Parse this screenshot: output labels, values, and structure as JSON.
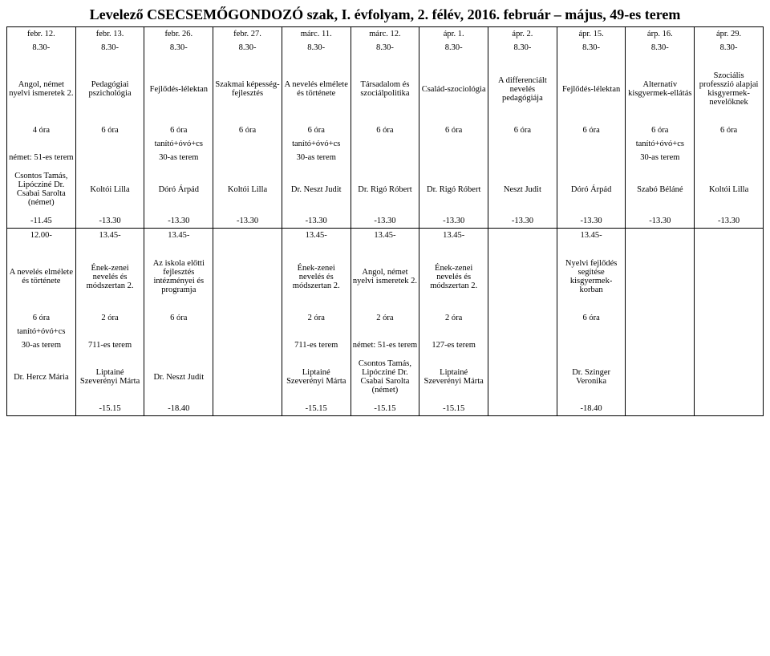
{
  "title": "Levelező CSECSEMŐGONDOZÓ szak, I. évfolyam, 2. félév, 2016. február – május, 49-es terem",
  "dates": [
    "febr. 12.",
    "febr. 13.",
    "febr. 26.",
    "febr. 27.",
    "márc. 11.",
    "márc. 12.",
    "ápr. 1.",
    "ápr. 2.",
    "ápr. 15.",
    "árp. 16.",
    "ápr. 29."
  ],
  "times": [
    "8.30-",
    "8.30-",
    "8.30-",
    "8.30-",
    "8.30-",
    "8.30-",
    "8.30-",
    "8.30-",
    "8.30-",
    "8.30-",
    "8.30-"
  ],
  "block1": {
    "subjects": [
      "Angol, német nyelvi ismeretek 2.",
      "Pedagógiai pszichológia",
      "Fejlődés-lélektan",
      "Szakmai képesség-fejlesztés",
      "A nevelés elmélete és története",
      "Társadalom és szociálpolitika",
      "Család-szociológia",
      "A differenciált nevelés pedagógiája",
      "Fejlődés-lélektan",
      "Alternatív kisgyermek-ellátás",
      "Szociális professzió alapjai kisgyermek-nevelőknek"
    ],
    "hours": [
      "4 óra",
      "6 óra",
      "6 óra",
      "6 óra",
      "6 óra",
      "6 óra",
      "6 óra",
      "6 óra",
      "6 óra",
      "6 óra",
      "6 óra"
    ],
    "tags": [
      "",
      "",
      "tanító+óvó+cs",
      "",
      "tanító+óvó+cs",
      "",
      "",
      "",
      "",
      "tanító+óvó+cs",
      ""
    ],
    "rooms": [
      "német: 51-es terem",
      "",
      "30-as terem",
      "",
      "30-as terem",
      "",
      "",
      "",
      "",
      "30-as terem",
      ""
    ],
    "instr": [
      "Csontos Tamás, Lipócziné Dr. Csabai Sarolta (német)",
      "Koltói Lilla",
      "Dóró Árpád",
      "Koltói Lilla",
      "Dr. Neszt Judit",
      "Dr. Rigó Róbert",
      "Dr. Rigó Róbert",
      "Neszt Judit",
      "Dóró Árpád",
      "Szabó Béláné",
      "Koltói Lilla"
    ],
    "ends": [
      "-11.45",
      "-13.30",
      "-13.30",
      "-13.30",
      "-13.30",
      "-13.30",
      "-13.30",
      "-13.30",
      "-13.30",
      "-13.30",
      "-13.30"
    ]
  },
  "times2": [
    "12.00-",
    "13.45-",
    "13.45-",
    "",
    "13.45-",
    "13.45-",
    "13.45-",
    "",
    "13.45-",
    "",
    ""
  ],
  "block2": {
    "subjects": [
      "A nevelés elmélete és története",
      "Ének-zenei nevelés és módszertan 2.",
      "Az iskola előtti fejlesztés intézményei és programja",
      "",
      "Ének-zenei nevelés és módszertan 2.",
      "Angol, német nyelvi ismeretek 2.",
      "Ének-zenei nevelés és módszertan 2.",
      "",
      "Nyelvi fejlődés segítése kisgyermek-korban",
      "",
      ""
    ],
    "hours": [
      "6 óra",
      "2 óra",
      "6 óra",
      "",
      "2 óra",
      "2 óra",
      "2 óra",
      "",
      "6 óra",
      "",
      ""
    ],
    "tags": [
      "tanító+óvó+cs",
      "",
      "",
      "",
      "",
      "",
      "",
      "",
      "",
      "",
      ""
    ],
    "rooms": [
      "30-as terem",
      "711-es terem",
      "",
      "",
      "711-es terem",
      "német: 51-es terem",
      "127-es terem",
      "",
      "",
      "",
      ""
    ],
    "instr": [
      "Dr. Hercz Mária",
      "Liptainé Szeverényi Márta",
      "Dr. Neszt Judit",
      "",
      "Liptainé Szeverényi Márta",
      "Csontos Tamás, Lipócziné Dr. Csabai Sarolta (német)",
      "Liptainé Szeverényi Márta",
      "",
      "Dr. Szinger Veronika",
      "",
      ""
    ],
    "ends": [
      "",
      "-15.15",
      "-18.40",
      "",
      "-15.15",
      "-15.15",
      "-15.15",
      "",
      "-18.40",
      "",
      ""
    ]
  }
}
